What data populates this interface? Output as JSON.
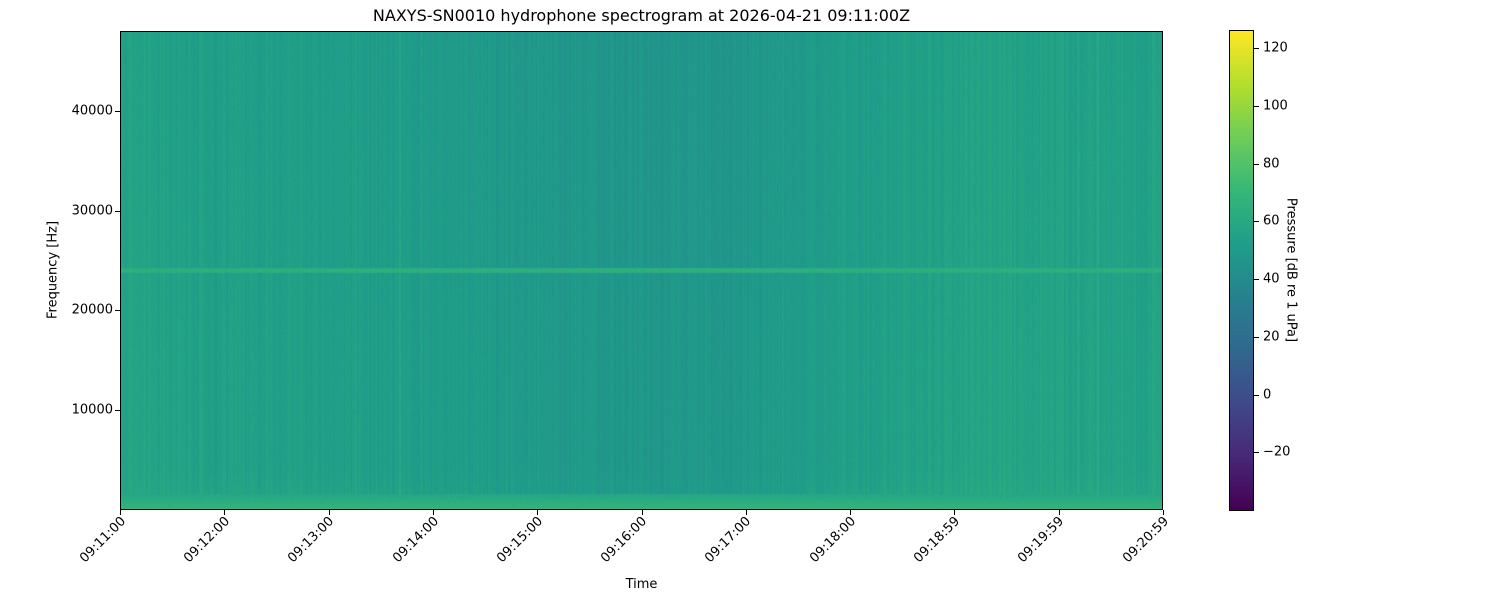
{
  "chart_data": {
    "type": "heatmap",
    "title": "NAXYS-SN0010 hydrophone spectrogram at 2026-04-21 09:11:00Z",
    "xlabel": "Time",
    "ylabel": "Frequency [Hz]",
    "colorbar_label": "Pressure [dB re 1 uPa]",
    "colormap": "viridis",
    "xlim": [
      "09:11:00",
      "09:20:59"
    ],
    "ylim": [
      0,
      48000
    ],
    "clim": [
      -40,
      126
    ],
    "x_ticks": [
      "09:11:00",
      "09:12:00",
      "09:13:00",
      "09:14:00",
      "09:15:00",
      "09:16:00",
      "09:17:00",
      "09:18:00",
      "09:18:59",
      "09:19:59",
      "09:20:59"
    ],
    "y_ticks": [
      10000,
      20000,
      30000,
      40000
    ],
    "colorbar_ticks": [
      -20,
      0,
      20,
      40,
      60,
      80,
      100,
      120
    ],
    "background_level_db_by_minute": [
      {
        "time": "09:11:00",
        "db": 57
      },
      {
        "time": "09:12:00",
        "db": 55
      },
      {
        "time": "09:13:00",
        "db": 54
      },
      {
        "time": "09:14:00",
        "db": 52
      },
      {
        "time": "09:15:00",
        "db": 50
      },
      {
        "time": "09:16:00",
        "db": 48
      },
      {
        "time": "09:17:00",
        "db": 50
      },
      {
        "time": "09:18:00",
        "db": 53
      },
      {
        "time": "09:18:59",
        "db": 57
      },
      {
        "time": "09:19:59",
        "db": 57
      },
      {
        "time": "09:20:59",
        "db": 56
      }
    ],
    "tonal_lines": [
      {
        "frequency_hz": 24000,
        "level_db": 66
      }
    ],
    "low_frequency_band": {
      "max_frequency_hz": 1500,
      "level_db": 68
    },
    "grid": false
  }
}
